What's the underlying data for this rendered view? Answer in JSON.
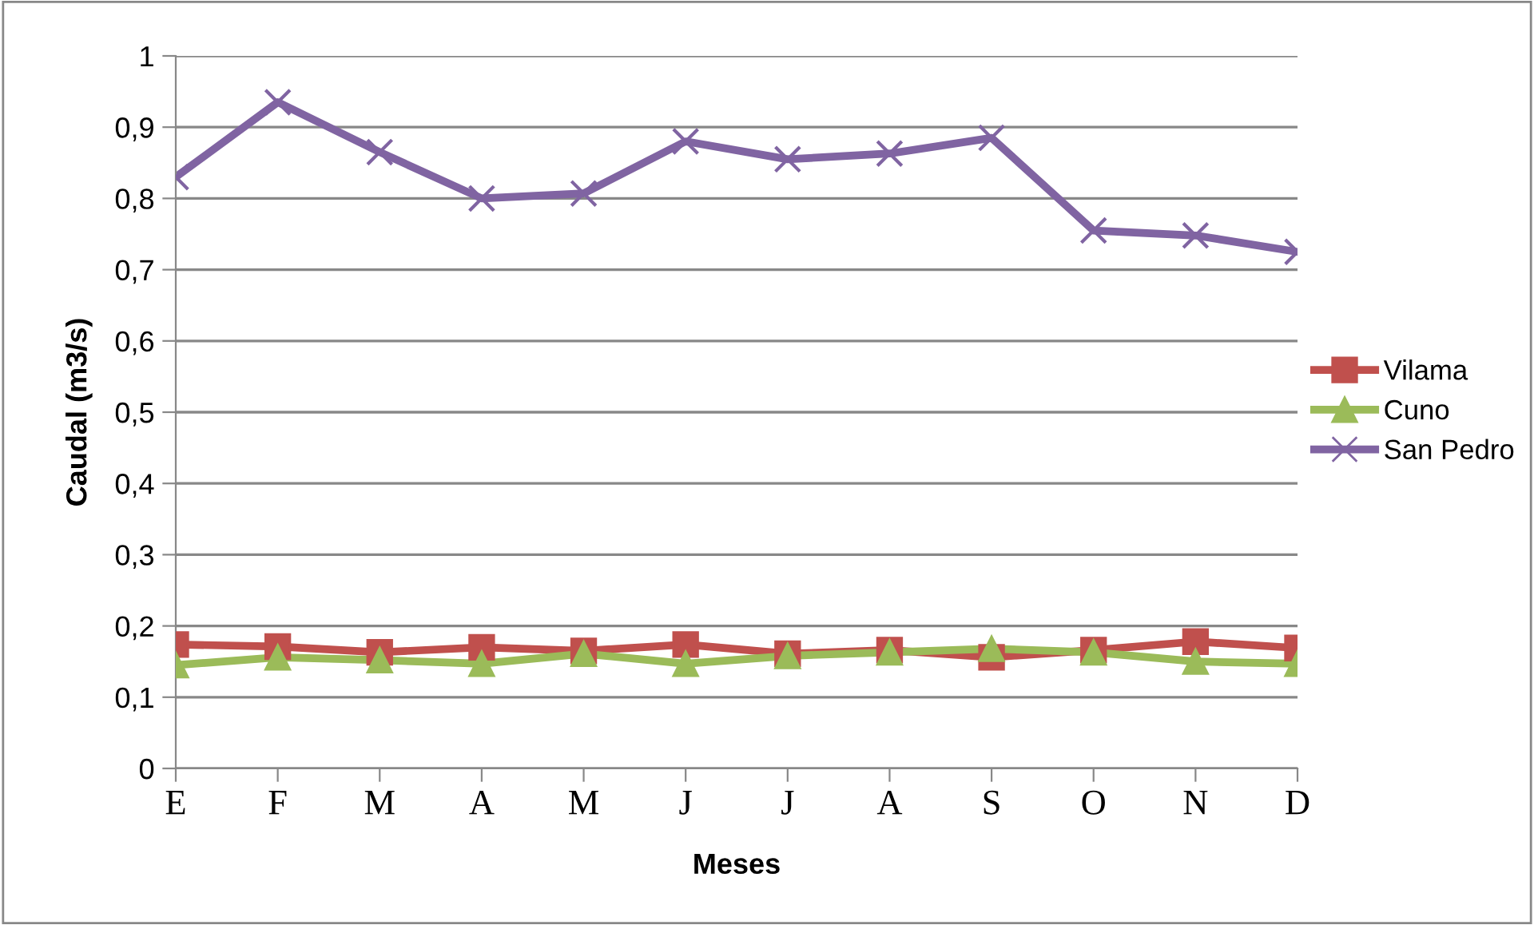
{
  "chart_data": {
    "type": "line",
    "xlabel": "Meses",
    "ylabel": "Caudal (m3/s)",
    "categories": [
      "E",
      "F",
      "M",
      "A",
      "M",
      "J",
      "J",
      "A",
      "S",
      "O",
      "N",
      "D"
    ],
    "series": [
      {
        "name": "Vilama",
        "color": "#c0504d",
        "marker": "square",
        "values": [
          0.174,
          0.171,
          0.163,
          0.17,
          0.165,
          0.174,
          0.161,
          0.166,
          0.156,
          0.166,
          0.178,
          0.169
        ]
      },
      {
        "name": "Cuno",
        "color": "#9bbb59",
        "marker": "triangle",
        "values": [
          0.145,
          0.156,
          0.152,
          0.147,
          0.161,
          0.147,
          0.158,
          0.163,
          0.168,
          0.163,
          0.15,
          0.147
        ]
      },
      {
        "name": "San Pedro",
        "color": "#8064a2",
        "marker": "cross",
        "values": [
          0.83,
          0.935,
          0.865,
          0.8,
          0.807,
          0.88,
          0.855,
          0.863,
          0.885,
          0.755,
          0.748,
          0.725
        ]
      }
    ],
    "ylim": [
      0,
      1
    ],
    "yticks": [
      {
        "value": 0,
        "label": "0"
      },
      {
        "value": 0.1,
        "label": "0,1"
      },
      {
        "value": 0.2,
        "label": "0,2"
      },
      {
        "value": 0.3,
        "label": "0,3"
      },
      {
        "value": 0.4,
        "label": "0,4"
      },
      {
        "value": 0.5,
        "label": "0,5"
      },
      {
        "value": 0.6,
        "label": "0,6"
      },
      {
        "value": 0.7,
        "label": "0,7"
      },
      {
        "value": 0.8,
        "label": "0,8"
      },
      {
        "value": 0.9,
        "label": "0,9"
      },
      {
        "value": 1,
        "label": "1"
      }
    ],
    "grid": "y",
    "legend": "right"
  }
}
